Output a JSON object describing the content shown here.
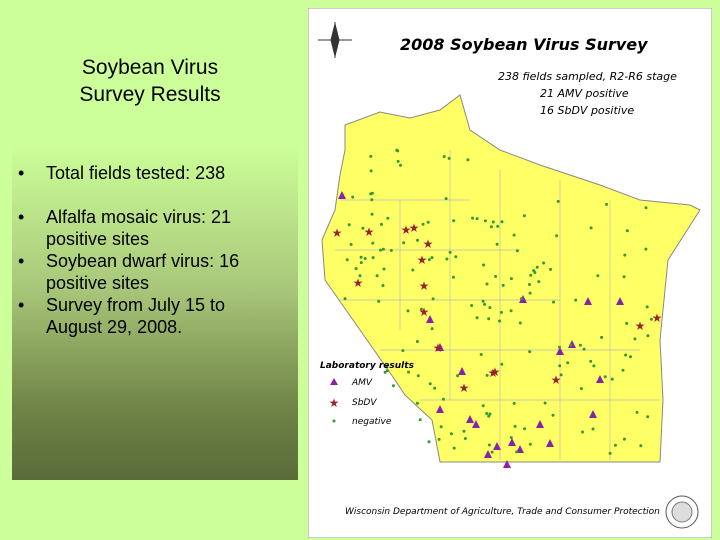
{
  "slide": {
    "title": [
      "Soybean Virus",
      "Survey Results"
    ],
    "bullets": [
      "Total fields tested: 238",
      "Alfalfa mosaic virus: 21 positive sites",
      "Soybean dwarf virus: 16 positive sites",
      "Survey from July 15 to August 29, 2008."
    ]
  },
  "map": {
    "title": "2008 Soybean Virus Survey",
    "notes": [
      "238 fields sampled, R2-R6 stage",
      "21 AMV positive",
      "16 SbDV positive"
    ],
    "legend_title": "Laboratory results",
    "legend": [
      "AMV",
      "SbDV",
      "negative"
    ],
    "credit": "Wisconsin Department of Agriculture, Trade and Consumer Protection"
  }
}
